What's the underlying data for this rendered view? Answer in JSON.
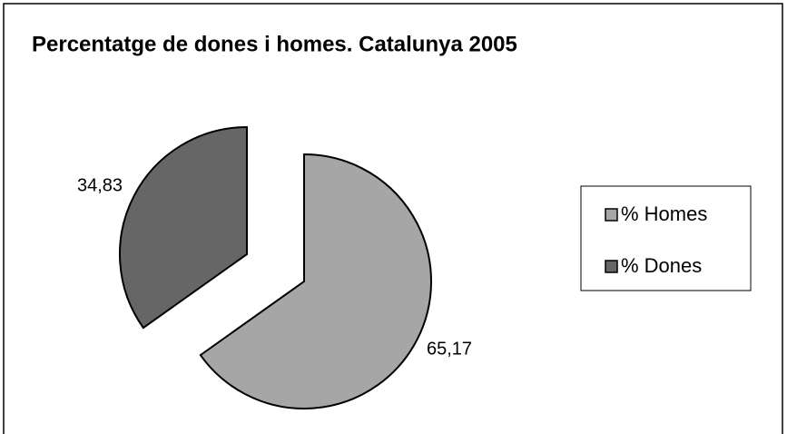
{
  "chart_data": {
    "type": "pie",
    "title": "Percentatge de dones i homes. Catalunya 2005",
    "categories": [
      "% Homes",
      "% Dones"
    ],
    "values": [
      65.17,
      34.83
    ],
    "value_labels": [
      "65,17",
      "34,83"
    ],
    "colors": [
      "#a6a6a6",
      "#666666"
    ],
    "legend": "right"
  }
}
